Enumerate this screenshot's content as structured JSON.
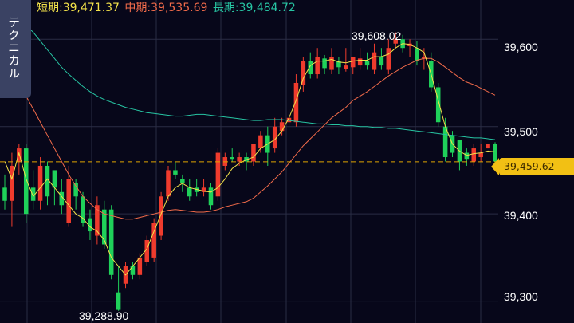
{
  "legend": {
    "short": {
      "label": "短期:39,471.37",
      "color": "#f3e24a"
    },
    "mid": {
      "label": "中期:39,535.69",
      "color": "#f26b4a"
    },
    "long": {
      "label": "長期:39,484.72",
      "color": "#27c4a2"
    }
  },
  "side_tab": {
    "label": "テクニカル"
  },
  "price_tag": {
    "label": "39,459.62",
    "color": "#f2c014"
  },
  "chart_data": {
    "type": "candlestick",
    "ylim": [
      39275,
      39645
    ],
    "y_ticks": [
      {
        "value": 39600,
        "label": "39,600"
      },
      {
        "value": 39500,
        "label": "39,500"
      },
      {
        "value": 39400,
        "label": "39,400"
      },
      {
        "value": 39300,
        "label": "39,300"
      }
    ],
    "current_price": 39459.62,
    "annotations": {
      "high": {
        "label": "39,608.02",
        "value": 39608.02,
        "index": 55
      },
      "low": {
        "label": "39,288.90",
        "value": 39288.9,
        "index": 16
      }
    },
    "colors": {
      "up": "#ef3b2d",
      "down": "#1fd15a"
    },
    "candles": [
      [
        39430,
        39415,
        39445,
        39405
      ],
      [
        39415,
        39455,
        39470,
        39385
      ],
      [
        39460,
        39475,
        39480,
        39445
      ],
      [
        39475,
        39400,
        39480,
        39390
      ],
      [
        39430,
        39415,
        39450,
        39405
      ],
      [
        39415,
        39455,
        39465,
        39405
      ],
      [
        39455,
        39420,
        39460,
        39410
      ],
      [
        39450,
        39430,
        39445,
        39410
      ],
      [
        39425,
        39410,
        39440,
        39400
      ],
      [
        39390,
        39440,
        39455,
        39385
      ],
      [
        39435,
        39420,
        39440,
        39405
      ],
      [
        39420,
        39390,
        39425,
        39385
      ],
      [
        39395,
        39380,
        39405,
        39370
      ],
      [
        39375,
        39410,
        39420,
        39365
      ],
      [
        39405,
        39365,
        39415,
        39360
      ],
      [
        39405,
        39330,
        39410,
        39325
      ],
      [
        39310,
        39290,
        39340,
        39288.9
      ],
      [
        39320,
        39340,
        39345,
        39315
      ],
      [
        39340,
        39330,
        39345,
        39325
      ],
      [
        39330,
        39350,
        39355,
        39325
      ],
      [
        39345,
        39370,
        39375,
        39340
      ],
      [
        39350,
        39390,
        39395,
        39345
      ],
      [
        39375,
        39420,
        39425,
        39370
      ],
      [
        39420,
        39450,
        39455,
        39415
      ],
      [
        39450,
        39445,
        39460,
        39440
      ],
      [
        39440,
        39435,
        39445,
        39425
      ],
      [
        39430,
        39420,
        39440,
        39415
      ],
      [
        39430,
        39425,
        39440,
        39420
      ],
      [
        39425,
        39430,
        39440,
        39420
      ],
      [
        39430,
        39410,
        39435,
        39405
      ],
      [
        39420,
        39470,
        39475,
        39415
      ],
      [
        39455,
        39465,
        39470,
        39450
      ],
      [
        39465,
        39463,
        39475,
        39460
      ],
      [
        39460,
        39465,
        39470,
        39455
      ],
      [
        39465,
        39460,
        39470,
        39450
      ],
      [
        39460,
        39480,
        39480,
        39455
      ],
      [
        39475,
        39490,
        39495,
        39470
      ],
      [
        39490,
        39470,
        39500,
        39455
      ],
      [
        39475,
        39500,
        39510,
        39470
      ],
      [
        39495,
        39505,
        39510,
        39490
      ],
      [
        39505,
        39510,
        39520,
        39500
      ],
      [
        39505,
        39550,
        39560,
        39500
      ],
      [
        39548,
        39575,
        39580,
        39540
      ],
      [
        39575,
        39560,
        39585,
        39555
      ],
      [
        39560,
        39580,
        39590,
        39555
      ],
      [
        39578,
        39567,
        39582,
        39560
      ],
      [
        39565,
        39580,
        39590,
        39560
      ],
      [
        39575,
        39568,
        39580,
        39560
      ],
      [
        39566,
        39570,
        39590,
        39563
      ],
      [
        39568,
        39580,
        39580,
        39560
      ],
      [
        39570,
        39578,
        39590,
        39565
      ],
      [
        39575,
        39570,
        39585,
        39565
      ],
      [
        39565,
        39585,
        39595,
        39560
      ],
      [
        39580,
        39570,
        39590,
        39565
      ],
      [
        39565,
        39590,
        39600,
        39560
      ],
      [
        39595,
        39600,
        39608.02,
        39590
      ],
      [
        39600,
        39590,
        39605,
        39585
      ],
      [
        39592,
        39595,
        39600,
        39580
      ],
      [
        39590,
        39575,
        39598,
        39570
      ],
      [
        39578,
        39580,
        39590,
        39565
      ],
      [
        39575,
        39545,
        39585,
        39540
      ],
      [
        39545,
        39505,
        39550,
        39500
      ],
      [
        39500,
        39465,
        39510,
        39460
      ],
      [
        39490,
        39470,
        39495,
        39465
      ],
      [
        39485,
        39460,
        39485,
        39450
      ],
      [
        39470,
        39463,
        39475,
        39455
      ],
      [
        39460,
        39475,
        39480,
        39455
      ],
      [
        39465,
        39470,
        39480,
        39460
      ],
      [
        39475,
        39480,
        39480,
        39475
      ],
      [
        39480,
        39460,
        39482,
        39456
      ]
    ],
    "ma_short": [
      39460,
      39440,
      39470,
      39440,
      39420,
      39430,
      39440,
      39430,
      39420,
      39410,
      39400,
      39395,
      39385,
      39380,
      39370,
      39350,
      39340,
      39330,
      39340,
      39350,
      39360,
      39380,
      39400,
      39420,
      39430,
      39435,
      39430,
      39428,
      39426,
      39425,
      39430,
      39440,
      39452,
      39458,
      39462,
      39465,
      39475,
      39480,
      39485,
      39495,
      39510,
      39530,
      39555,
      39570,
      39575,
      39575,
      39577,
      39574,
      39573,
      39575,
      39576,
      39576,
      39580,
      39580,
      39583,
      39590,
      39595,
      39594,
      39590,
      39585,
      39560,
      39530,
      39500,
      39480,
      39472,
      39467,
      39469,
      39470,
      39472,
      39471
    ],
    "ma_mid": [
      39590,
      39575,
      39555,
      39535,
      39520,
      39505,
      39490,
      39475,
      39460,
      39445,
      39432,
      39420,
      39412,
      39405,
      39400,
      39398,
      39396,
      39394,
      39394,
      39396,
      39398,
      39400,
      39402,
      39404,
      39405,
      39404,
      39403,
      39402,
      39402,
      39403,
      39405,
      39408,
      39410,
      39412,
      39414,
      39418,
      39425,
      39432,
      39440,
      39448,
      39458,
      39468,
      39478,
      39486,
      39494,
      39502,
      39510,
      39516,
      39522,
      39530,
      39535,
      39540,
      39546,
      39552,
      39558,
      39563,
      39568,
      39572,
      39576,
      39578,
      39578,
      39574,
      39568,
      39562,
      39556,
      39551,
      39548,
      39544,
      39540,
      39536
    ],
    "ma_long": [
      39640,
      39628,
      39622,
      39616,
      39608,
      39598,
      39588,
      39578,
      39568,
      39560,
      39553,
      39546,
      39540,
      39535,
      39531,
      39528,
      39525,
      39522,
      39520,
      39518,
      39516,
      39515,
      39514,
      39513,
      39512,
      39512,
      39513,
      39514,
      39514,
      39513,
      39512,
      39511,
      39510,
      39509,
      39508,
      39507,
      39507,
      39508,
      39508,
      39508,
      39507,
      39506,
      39505,
      39504,
      39503,
      39503,
      39502,
      39502,
      39501,
      39501,
      39500,
      39500,
      39499,
      39499,
      39498,
      39498,
      39497,
      39496,
      39495,
      39494,
      39493,
      39492,
      39491,
      39490,
      39489,
      39488,
      39487,
      39487,
      39486,
      39485
    ]
  }
}
